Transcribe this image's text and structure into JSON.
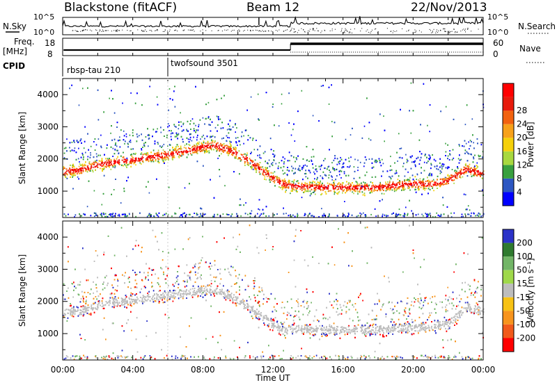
{
  "chart_data": {
    "type": "heatmap",
    "title": {
      "radar": "Blackstone (fitACF)",
      "beam": "Beam 12",
      "date": "22/Nov/2013"
    },
    "xlabel": "Time UT",
    "x_ticks": [
      "00:00",
      "04:00",
      "08:00",
      "12:00",
      "16:00",
      "20:00",
      "00:00"
    ],
    "x_range_hours": [
      0,
      24
    ],
    "strips": {
      "nsky": {
        "label": "N.Sky",
        "right_label": "N.Search",
        "tick_top": "10^5",
        "tick_bottom": "10^0"
      },
      "freq": {
        "label_1": "Freq.",
        "label_2": "[MHz]",
        "ticks": [
          "18",
          "8"
        ],
        "right_ticks": [
          "60",
          "0"
        ],
        "right_label": "Nave"
      },
      "cpid": {
        "label": "CPID",
        "segments": [
          {
            "name": "rbsp-tau 210",
            "start_hour": 0
          },
          {
            "name": "twofsound 3501",
            "start_hour": 6
          }
        ]
      }
    },
    "panels": [
      {
        "quantity": "Power",
        "ylabel": "Slant Range [km]",
        "ylim": [
          180,
          4500
        ],
        "y_ticks": [
          1000,
          2000,
          3000,
          4000
        ],
        "colorbar": {
          "label": "Power [dB]",
          "ticks": [
            "4",
            "8",
            "12",
            "16",
            "20",
            "24",
            "28"
          ],
          "colors": [
            "#0000ff",
            "#2d57c2",
            "#38a03f",
            "#a8d83f",
            "#f5d00a",
            "#f7a11a",
            "#f2620f",
            "#e71a0b",
            "#ff0000"
          ]
        },
        "band": [
          [
            0.0,
            1620
          ],
          [
            0.8,
            1660
          ],
          [
            1.6,
            1780
          ],
          [
            2.4,
            1880
          ],
          [
            6.0,
            2150
          ],
          [
            8.5,
            2450
          ],
          [
            9.5,
            2300
          ],
          [
            10.5,
            2000
          ],
          [
            11.5,
            1600
          ],
          [
            12.5,
            1250
          ],
          [
            13.0,
            1180
          ],
          [
            14.0,
            1150
          ],
          [
            16.0,
            1130
          ],
          [
            18.0,
            1140
          ],
          [
            19.0,
            1200
          ],
          [
            20.0,
            1250
          ],
          [
            21.0,
            1230
          ],
          [
            22.0,
            1350
          ],
          [
            23.0,
            1700
          ],
          [
            24.0,
            1550
          ]
        ]
      },
      {
        "quantity": "Velocity",
        "ylabel": "Slant Range [km]",
        "ylim": [
          180,
          4500
        ],
        "y_ticks": [
          1000,
          2000,
          3000,
          4000
        ],
        "colorbar": {
          "label": "Velocity [m s⁻¹]",
          "ticks": [
            "200",
            "100",
            "50",
            "15",
            "-15",
            "-50",
            "-100",
            "-200"
          ],
          "colors": [
            "#2b32c8",
            "#2f7a2f",
            "#72b567",
            "#9fd84a",
            "#bdbdbd",
            "#f7c214",
            "#f7941d",
            "#f15a1b",
            "#ff0000"
          ]
        },
        "band": [
          [
            0.0,
            1700
          ],
          [
            0.8,
            1700
          ],
          [
            1.6,
            1800
          ],
          [
            2.4,
            1950
          ],
          [
            8.5,
            2400
          ],
          [
            9.5,
            2200
          ],
          [
            10.5,
            1900
          ],
          [
            11.5,
            1500
          ],
          [
            12.5,
            1100
          ],
          [
            13.0,
            1150
          ],
          [
            14.0,
            1150
          ],
          [
            16.0,
            1130
          ],
          [
            18.0,
            1140
          ],
          [
            20.0,
            1200
          ],
          [
            22.0,
            1300
          ],
          [
            23.0,
            1850
          ],
          [
            24.0,
            1700
          ]
        ]
      }
    ]
  }
}
